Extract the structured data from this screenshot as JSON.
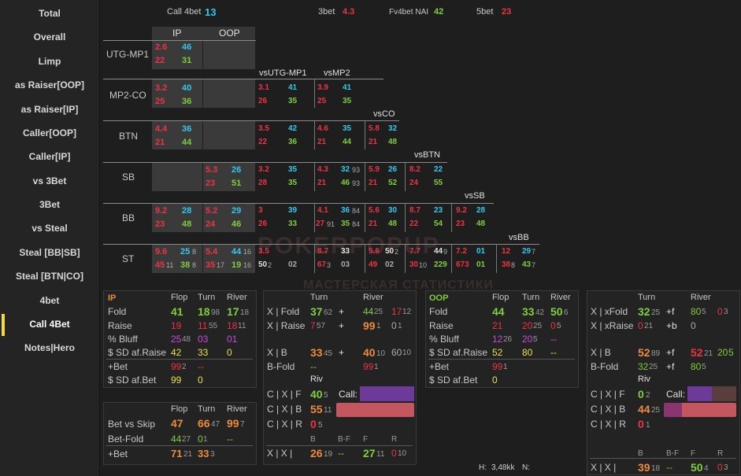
{
  "sidebar": {
    "items": [
      "Total",
      "Overall",
      "Limp",
      "as Raiser[OOP]",
      "as Raiser[IP]",
      "Caller[OOP]",
      "Caller[IP]",
      "vs 3Bet",
      "3Bet",
      "vs Steal",
      "Steal [BB|SB]",
      "Steal [BTN|CO]",
      "4bet",
      "Call 4Bet",
      "Notes|Hero"
    ]
  },
  "top": {
    "call4bet_label": "Call 4bet",
    "call4bet_value": "13",
    "threebet_label": "3bet",
    "threebet_value": "4.3",
    "fv4bet_label": "Fv4bet NAI",
    "fv4bet_value": "42",
    "fivebet_label": "5bet",
    "fivebet_value": "23"
  },
  "grid": {
    "col_ip": "IP",
    "col_oop": "OOP",
    "rows": [
      "UTG-MP1",
      "MP2-CO",
      "BTN",
      "SB",
      "BB",
      "ST"
    ],
    "vs": [
      "vsUTG-MP1",
      "vsMP2",
      "vsCO",
      "vsBTN",
      "vsSB",
      "vsBB"
    ],
    "utg": {
      "a": "2.6",
      "b": "46",
      "c": "22",
      "d": "31"
    },
    "mp2": {
      "a": "3.2",
      "b": "40",
      "c": "25",
      "d": "36",
      "v1a": "3.1",
      "v1b": "41",
      "v1c": "26",
      "v1d": "35",
      "v2a": "3.9",
      "v2b": "41",
      "v2c": "25",
      "v2d": "35"
    },
    "btn": {
      "a": "4.4",
      "b": "36",
      "c": "21",
      "d": "44",
      "v1a": "3.5",
      "v1b": "42",
      "v1c": "22",
      "v1d": "36",
      "v2a": "4.6",
      "v2b": "35",
      "v2c": "21",
      "v2d": "44",
      "v3a": "5.8",
      "v3b": "32",
      "v3c": "21",
      "v3d": "48"
    },
    "sb": {
      "a": "5.3",
      "b": "26",
      "c": "23",
      "d": "51",
      "v1a": "3.2",
      "v1b": "35",
      "v1c": "28",
      "v1d": "35",
      "v2a": "4.3",
      "v2b": "32",
      "v2bs": "93",
      "v2c": "21",
      "v2d": "46",
      "v2ds": "93",
      "v3a": "5.9",
      "v3b": "26",
      "v3c": "21",
      "v3d": "52",
      "v4a": "8.2",
      "v4b": "22",
      "v4c": "24",
      "v4d": "55"
    },
    "bb": {
      "a": "9.2",
      "b": "28",
      "c": "23",
      "d": "48",
      "e": "5.2",
      "f": "29",
      "g": "24",
      "h": "46",
      "v1a": "3",
      "v1b": "39",
      "v1c": "26",
      "v1d": "33",
      "v2a": "4.1",
      "v2b": "36",
      "v2bs": "84",
      "v2c": "27",
      "v2cs": "91",
      "v2d": "35",
      "v2ds": "84",
      "v3a": "5.6",
      "v3b": "30",
      "v3c": "21",
      "v3d": "48",
      "v4a": "8.7",
      "v4b": "23",
      "v4c": "22",
      "v4d": "54",
      "v5a": "9.2",
      "v5b": "28",
      "v5c": "23",
      "v5d": "48"
    },
    "st": {
      "a": "9.6",
      "b": "25",
      "bs": "8",
      "c": "45",
      "cs": "11",
      "d": "38",
      "ds": "8",
      "e": "5.4",
      "f": "44",
      "fs": "16",
      "g": "35",
      "gs": "17",
      "h": "19",
      "hs": "16",
      "v1a": "3.5",
      "v1b": "",
      "v1c": "50",
      "v1cs": "2",
      "v1d": "02",
      "v2a": "8.7",
      "v2b": "33",
      "v2c": "67",
      "v2cs": "3",
      "v2d": "03",
      "v3a": "5.6",
      "v3b": "50",
      "v3bs": "2",
      "v3c": "49",
      "v3d": "02",
      "v4a": "7.7",
      "v4b": "44",
      "v4bs": "9",
      "v4c": "30",
      "v4cs": "10",
      "v4d": "229",
      "v5a": "7.2",
      "v5b": "01",
      "v5c": "673",
      "v5d": "01",
      "v6a": "12",
      "v6b": "29",
      "v6bs": "7",
      "v6c": "38",
      "v6cs": "8",
      "v6d": "43",
      "v6ds": "7"
    }
  },
  "ip_panel": {
    "title": "IP",
    "flop": "Flop",
    "turn": "Turn",
    "river": "River",
    "fold": "Fold",
    "fold_f": "41",
    "fold_t": "18",
    "fold_ts": "98",
    "fold_r": "17",
    "fold_rs": "18",
    "raise": "Raise",
    "raise_f": "19",
    "raise_t": "11",
    "raise_ts": "55",
    "raise_r": "18",
    "raise_rs": "11",
    "bluff": "% Bluff",
    "bluff_f": "25",
    "bluff_fs": "48",
    "bluff_t": "03",
    "bluff_r": "01",
    "sd": "$ SD af.Raise",
    "sd_f": "42",
    "sd_t": "33",
    "sd_r": "0",
    "bet": "+Bet",
    "bet_f": "99",
    "bet_fs": "2",
    "bet_t": "--",
    "sdbet": "$ SD af.Bet",
    "sdbet_f": "99",
    "sdbet_t": "0"
  },
  "ip_xpanel": {
    "turn": "Turn",
    "river": "River",
    "xfold": "X | Fold",
    "xfold_t": "37",
    "xfold_ts": "62",
    "xfold_plus": "+",
    "xfold_r": "44",
    "xfold_rs": "25",
    "xfold_r2": "17",
    "xfold_r2s": "12",
    "xraise": "X | Raise",
    "xraise_t": "7",
    "xraise_ts": "57",
    "xraise_plus": "+",
    "xraise_r": "99",
    "xraise_rs": "1",
    "xraise_r2": "0",
    "xraise_r2s": "1",
    "xb": "X | B",
    "xb_t": "33",
    "xb_ts": "45",
    "xb_plus": "+",
    "xb_r": "40",
    "xb_rs": "10",
    "xb_r2": "60",
    "xb_r2s": "10",
    "bfold": "B-Fold",
    "bfold_t": "--",
    "bfold_r": "99",
    "bfold_rs": "1",
    "riv": "Riv",
    "cxf": "C | X | F",
    "cxf_v": "40",
    "cxf_vs": "5",
    "call": "Call:",
    "cxb": "C | X | B",
    "cxb_v": "55",
    "cxb_vs": "11",
    "cxr": "C | X | R",
    "cxr_v": "0",
    "cxr_vs": "5",
    "hb": "B",
    "hbf": "B-F",
    "hf": "F",
    "hr": "R",
    "xx": "X | X |",
    "xx_b": "26",
    "xx_bs": "19",
    "xx_bf": "--",
    "xx_f": "27",
    "xx_fs": "11",
    "xx_r": "0",
    "xx_rs": "10"
  },
  "skip_panel": {
    "flop": "Flop",
    "turn": "Turn",
    "river": "River",
    "bvs": "Bet vs Skip",
    "bvs_f": "47",
    "bvs_t": "66",
    "bvs_ts": "47",
    "bvs_r": "99",
    "bvs_rs": "7",
    "bf": "Bet-Fold",
    "bf_f": "44",
    "bf_fs": "27",
    "bf_t": "0",
    "bf_ts": "1",
    "bf_r": "--",
    "pb": "+Bet",
    "pb_f": "71",
    "pb_fs": "21",
    "pb_t": "33",
    "pb_ts": "3"
  },
  "oop_panel": {
    "title": "OOP",
    "flop": "Flop",
    "turn": "Turn",
    "river": "River",
    "fold": "Fold",
    "fold_f": "44",
    "fold_t": "33",
    "fold_ts": "42",
    "fold_r": "50",
    "fold_rs": "6",
    "raise": "Raise",
    "raise_f": "21",
    "raise_t": "20",
    "raise_ts": "25",
    "raise_r": "0",
    "raise_rs": "5",
    "bluff": "% Bluff",
    "bluff_f": "12",
    "bluff_fs": "26",
    "bluff_t": "20",
    "bluff_ts": "5",
    "bluff_r": "--",
    "sd": "$ SD af.Raise",
    "sd_f": "52",
    "sd_t": "80",
    "sd_r": "--",
    "bet": "+Bet",
    "bet_f": "99",
    "bet_fs": "1",
    "sdbet": "$ SD af.Bet",
    "sdbet_f": "0"
  },
  "oop_xpanel": {
    "turn": "Turn",
    "river": "River",
    "xxfold": "X | xFold",
    "xxfold_t": "32",
    "xxfold_ts": "25",
    "xxfold_p": "+f",
    "xxfold_r": "80",
    "xxfold_rs": "5",
    "xxfold_r2": "0",
    "xxfold_r2s": "3",
    "xxraise": "X | xRaise",
    "xxraise_t": "0",
    "xxraise_ts": "21",
    "xxraise_p": "+b",
    "xxraise_r": "0",
    "xb": "X | B",
    "xb_t": "52",
    "xb_ts": "89",
    "xb_p": "+f",
    "xb_r": "52",
    "xb_rs": "21",
    "xb_r2": "20",
    "xb_r2s": "5",
    "bfold": "B-Fold",
    "bfold_t": "32",
    "bfold_ts": "25",
    "bfold_p": "+f",
    "bfold_r": "80",
    "bfold_rs": "5",
    "riv": "Riv",
    "cxf": "C | X | F",
    "cxf_v": "0",
    "cxf_vs": "2",
    "call": "Call:",
    "cxb": "C | X | B",
    "cxb_v": "44",
    "cxb_vs": "25",
    "cxr": "C | X | R",
    "cxr_v": "0",
    "cxr_vs": "1",
    "hb": "B",
    "hbf": "B-F",
    "hf": "F",
    "hr": "R",
    "xx": "X | X |",
    "xx_b": "39",
    "xx_bs": "18",
    "xx_bf": "--",
    "xx_f": "50",
    "xx_fs": "4",
    "xx_r": "0",
    "xx_rs": "3"
  },
  "footer": {
    "h": "H:",
    "hands": "3,48kk",
    "n": "N:"
  },
  "watermark": {
    "line1": "POKERPOPUP",
    "line2": "МАСТЕРСКАЯ СТАТИСТИКИ"
  },
  "colors": {
    "red": "#ee3344",
    "blue": "#33c8ee",
    "green": "#7fce3c",
    "orange": "#ee8a3a",
    "purple": "#c84ae0",
    "yellow": "#e8e04a",
    "active_marker": "#f2d94e"
  }
}
